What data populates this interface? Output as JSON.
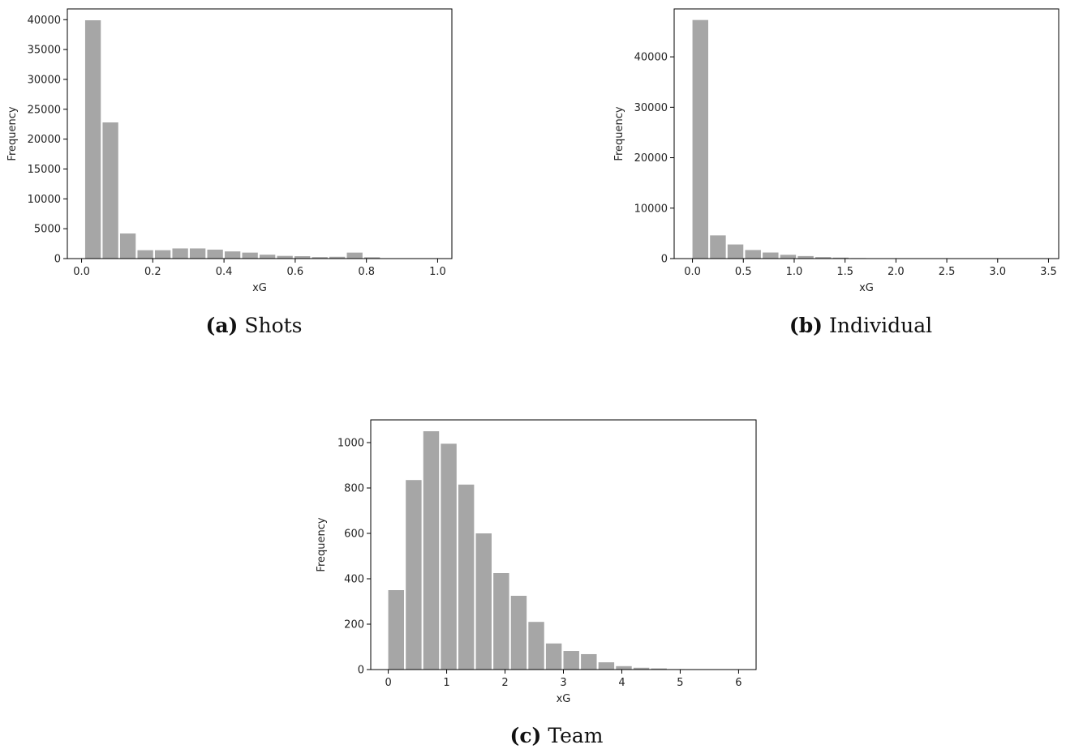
{
  "chart_data": [
    {
      "type": "bar",
      "caption_tag": "(a)",
      "caption": "Shots",
      "xlabel": "xG",
      "ylabel": "Frequency",
      "xlim": [
        -0.04,
        1.04
      ],
      "ylim": [
        0,
        41800
      ],
      "xticks": [
        0.0,
        0.2,
        0.4,
        0.6,
        0.8,
        1.0
      ],
      "xtick_labels": [
        "0.0",
        "0.2",
        "0.4",
        "0.6",
        "0.8",
        "1.0"
      ],
      "yticks": [
        0,
        5000,
        10000,
        15000,
        20000,
        25000,
        30000,
        35000,
        40000
      ],
      "ytick_labels": [
        "0",
        "5000",
        "10000",
        "15000",
        "20000",
        "25000",
        "30000",
        "35000",
        "40000"
      ],
      "bin_width": 0.049,
      "bar_width": 0.044,
      "bins_start": [
        0.01,
        0.059,
        0.108,
        0.157,
        0.206,
        0.255,
        0.304,
        0.353,
        0.402,
        0.451,
        0.5,
        0.549,
        0.598,
        0.647,
        0.696,
        0.745,
        0.794,
        0.843,
        0.892,
        0.941
      ],
      "values": [
        39900,
        22800,
        4200,
        1400,
        1400,
        1700,
        1700,
        1500,
        1200,
        1000,
        650,
        450,
        400,
        250,
        300,
        1000,
        220,
        60,
        30,
        20
      ]
    },
    {
      "type": "bar",
      "caption_tag": "(b)",
      "caption": "Individual",
      "xlabel": "xG",
      "ylabel": "Frequency",
      "xlim": [
        -0.18,
        3.6
      ],
      "ylim": [
        0,
        49500
      ],
      "xticks": [
        0.0,
        0.5,
        1.0,
        1.5,
        2.0,
        2.5,
        3.0,
        3.5
      ],
      "xtick_labels": [
        "0.0",
        "0.5",
        "1.0",
        "1.5",
        "2.0",
        "2.5",
        "3.0",
        "3.5"
      ],
      "yticks": [
        0,
        10000,
        20000,
        30000,
        40000
      ],
      "ytick_labels": [
        "0",
        "10000",
        "20000",
        "30000",
        "40000"
      ],
      "bin_width": 0.1725,
      "bar_width": 0.155,
      "bins_start": [
        0.0,
        0.1725,
        0.345,
        0.5175,
        0.69,
        0.8625,
        1.035,
        1.2075,
        1.38,
        1.5525,
        1.725,
        1.8975,
        2.07,
        2.2425,
        2.415,
        2.5875,
        2.76,
        2.9325,
        3.105,
        3.2775
      ],
      "values": [
        47300,
        4600,
        2800,
        1700,
        1200,
        750,
        500,
        300,
        200,
        100,
        60,
        40,
        30,
        20,
        10,
        10,
        5,
        5,
        5,
        5
      ]
    },
    {
      "type": "bar",
      "caption_tag": "(c)",
      "caption": "Team",
      "xlabel": "xG",
      "ylabel": "Frequency",
      "xlim": [
        -0.3,
        6.3
      ],
      "ylim": [
        0,
        1100
      ],
      "xticks": [
        0,
        1,
        2,
        3,
        4,
        5,
        6
      ],
      "xtick_labels": [
        "0",
        "1",
        "2",
        "3",
        "4",
        "5",
        "6"
      ],
      "yticks": [
        0,
        200,
        400,
        600,
        800,
        1000
      ],
      "ytick_labels": [
        "0",
        "200",
        "400",
        "600",
        "800",
        "1000"
      ],
      "bin_width": 0.3,
      "bar_width": 0.27,
      "bins_start": [
        0.0,
        0.3,
        0.6,
        0.9,
        1.2,
        1.5,
        1.8,
        2.1,
        2.4,
        2.7,
        3.0,
        3.3,
        3.6,
        3.9,
        4.2,
        4.5,
        4.8,
        5.1,
        5.4,
        5.7
      ],
      "values": [
        350,
        835,
        1050,
        995,
        815,
        600,
        425,
        325,
        210,
        115,
        82,
        68,
        32,
        15,
        8,
        5,
        2,
        1,
        1,
        1
      ]
    }
  ]
}
